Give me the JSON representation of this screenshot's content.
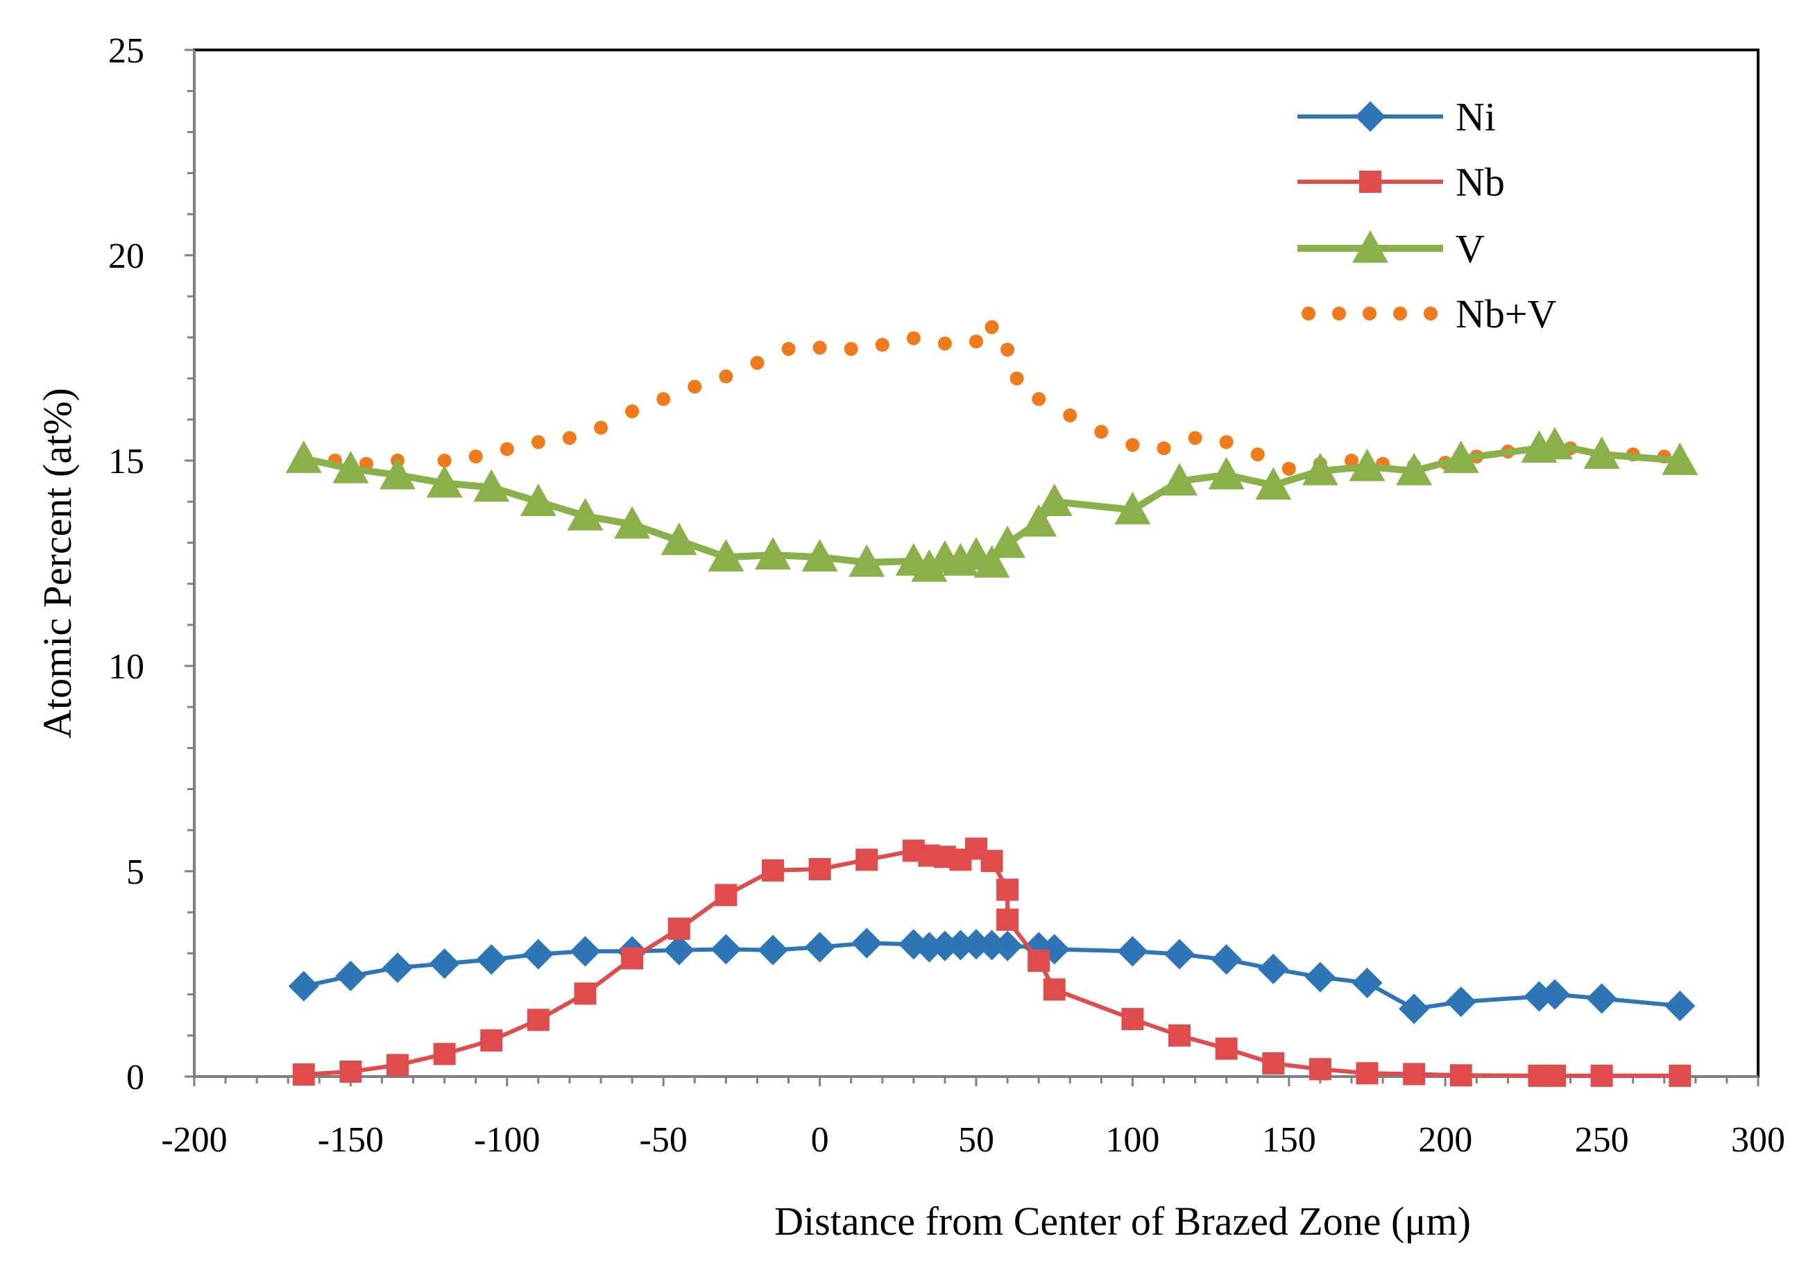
{
  "chart_data": {
    "type": "line",
    "title": "",
    "xlabel": "Distance from Center of Brazed Zone (μm)",
    "ylabel": "Atomic Percent (at%)",
    "xlim": [
      -200,
      300
    ],
    "ylim": [
      0,
      25
    ],
    "x_ticks": [
      -200,
      -150,
      -100,
      -50,
      0,
      50,
      100,
      150,
      200,
      250,
      300
    ],
    "x_tick_labels": [
      "-200",
      "-150",
      "-100",
      "-50",
      "0",
      "50",
      "100",
      "150",
      "200",
      "250",
      "300"
    ],
    "y_ticks": [
      0,
      5,
      10,
      15,
      20,
      25
    ],
    "y_tick_labels": [
      "0",
      "5",
      "10",
      "15",
      "20",
      "25"
    ],
    "grid": false,
    "legend_position": "top-right",
    "series": [
      {
        "name": "Ni",
        "color": "#2E75B6",
        "marker": "diamond",
        "line": "solid",
        "points": [
          [
            -165,
            2.2
          ],
          [
            -150,
            2.45
          ],
          [
            -135,
            2.65
          ],
          [
            -120,
            2.75
          ],
          [
            -105,
            2.85
          ],
          [
            -90,
            2.98
          ],
          [
            -75,
            3.05
          ],
          [
            -60,
            3.05
          ],
          [
            -45,
            3.08
          ],
          [
            -30,
            3.1
          ],
          [
            -15,
            3.08
          ],
          [
            0,
            3.15
          ],
          [
            15,
            3.25
          ],
          [
            30,
            3.22
          ],
          [
            35,
            3.15
          ],
          [
            40,
            3.18
          ],
          [
            45,
            3.2
          ],
          [
            50,
            3.22
          ],
          [
            55,
            3.2
          ],
          [
            60,
            3.18
          ],
          [
            70,
            3.15
          ],
          [
            75,
            3.1
          ],
          [
            100,
            3.05
          ],
          [
            115,
            2.98
          ],
          [
            130,
            2.85
          ],
          [
            145,
            2.62
          ],
          [
            160,
            2.42
          ],
          [
            175,
            2.28
          ],
          [
            190,
            1.65
          ],
          [
            205,
            1.82
          ],
          [
            230,
            1.95
          ],
          [
            235,
            2.0
          ],
          [
            250,
            1.9
          ],
          [
            275,
            1.72
          ]
        ]
      },
      {
        "name": "Nb",
        "color": "#E04B4B",
        "marker": "square",
        "line": "solid",
        "points": [
          [
            -165,
            0.05
          ],
          [
            -150,
            0.12
          ],
          [
            -135,
            0.28
          ],
          [
            -120,
            0.55
          ],
          [
            -105,
            0.88
          ],
          [
            -90,
            1.38
          ],
          [
            -75,
            2.02
          ],
          [
            -60,
            2.88
          ],
          [
            -45,
            3.6
          ],
          [
            -30,
            4.42
          ],
          [
            -15,
            5.02
          ],
          [
            0,
            5.05
          ],
          [
            15,
            5.28
          ],
          [
            30,
            5.5
          ],
          [
            35,
            5.38
          ],
          [
            40,
            5.35
          ],
          [
            45,
            5.28
          ],
          [
            50,
            5.55
          ],
          [
            55,
            5.25
          ],
          [
            60,
            4.55
          ],
          [
            60,
            3.82
          ],
          [
            70,
            2.82
          ],
          [
            75,
            2.12
          ],
          [
            100,
            1.4
          ],
          [
            115,
            1.0
          ],
          [
            130,
            0.68
          ],
          [
            145,
            0.32
          ],
          [
            160,
            0.18
          ],
          [
            175,
            0.08
          ],
          [
            190,
            0.06
          ],
          [
            205,
            0.03
          ],
          [
            230,
            0.02
          ],
          [
            235,
            0.02
          ],
          [
            250,
            0.02
          ],
          [
            275,
            0.02
          ]
        ]
      },
      {
        "name": "V",
        "color": "#8AB04A",
        "marker": "triangle",
        "line": "solid",
        "points": [
          [
            -165,
            15.05
          ],
          [
            -150,
            14.8
          ],
          [
            -135,
            14.65
          ],
          [
            -120,
            14.45
          ],
          [
            -105,
            14.35
          ],
          [
            -90,
            14.0
          ],
          [
            -75,
            13.65
          ],
          [
            -60,
            13.45
          ],
          [
            -45,
            13.05
          ],
          [
            -30,
            12.65
          ],
          [
            -15,
            12.7
          ],
          [
            0,
            12.65
          ],
          [
            15,
            12.52
          ],
          [
            30,
            12.55
          ],
          [
            35,
            12.4
          ],
          [
            40,
            12.62
          ],
          [
            45,
            12.55
          ],
          [
            50,
            12.7
          ],
          [
            55,
            12.5
          ],
          [
            60,
            12.98
          ],
          [
            70,
            13.5
          ],
          [
            75,
            14.0
          ],
          [
            100,
            13.8
          ],
          [
            115,
            14.5
          ],
          [
            130,
            14.65
          ],
          [
            145,
            14.4
          ],
          [
            160,
            14.75
          ],
          [
            175,
            14.85
          ],
          [
            190,
            14.75
          ],
          [
            205,
            15.05
          ],
          [
            230,
            15.3
          ],
          [
            235,
            15.38
          ],
          [
            250,
            15.15
          ],
          [
            275,
            15.0
          ]
        ]
      },
      {
        "name": "Nb+V",
        "color": "#F07A1A",
        "marker": "none",
        "line": "dotted",
        "points": [
          [
            -165,
            15.15
          ],
          [
            -155,
            15.0
          ],
          [
            -145,
            14.92
          ],
          [
            -135,
            15.0
          ],
          [
            -120,
            15.0
          ],
          [
            -110,
            15.1
          ],
          [
            -100,
            15.28
          ],
          [
            -90,
            15.45
          ],
          [
            -80,
            15.55
          ],
          [
            -70,
            15.8
          ],
          [
            -60,
            16.2
          ],
          [
            -50,
            16.5
          ],
          [
            -40,
            16.8
          ],
          [
            -30,
            17.05
          ],
          [
            -20,
            17.38
          ],
          [
            -10,
            17.72
          ],
          [
            0,
            17.75
          ],
          [
            10,
            17.72
          ],
          [
            20,
            17.82
          ],
          [
            30,
            17.98
          ],
          [
            40,
            17.85
          ],
          [
            50,
            17.9
          ],
          [
            55,
            18.25
          ],
          [
            60,
            17.7
          ],
          [
            63,
            17.0
          ],
          [
            70,
            16.5
          ],
          [
            80,
            16.1
          ],
          [
            90,
            15.7
          ],
          [
            100,
            15.38
          ],
          [
            110,
            15.3
          ],
          [
            120,
            15.55
          ],
          [
            130,
            15.45
          ],
          [
            140,
            15.15
          ],
          [
            150,
            14.8
          ],
          [
            160,
            14.92
          ],
          [
            170,
            15.0
          ],
          [
            180,
            14.92
          ],
          [
            190,
            14.88
          ],
          [
            200,
            14.95
          ],
          [
            210,
            15.1
          ],
          [
            220,
            15.22
          ],
          [
            230,
            15.28
          ],
          [
            240,
            15.3
          ],
          [
            250,
            15.2
          ],
          [
            260,
            15.15
          ],
          [
            270,
            15.1
          ]
        ]
      }
    ]
  }
}
